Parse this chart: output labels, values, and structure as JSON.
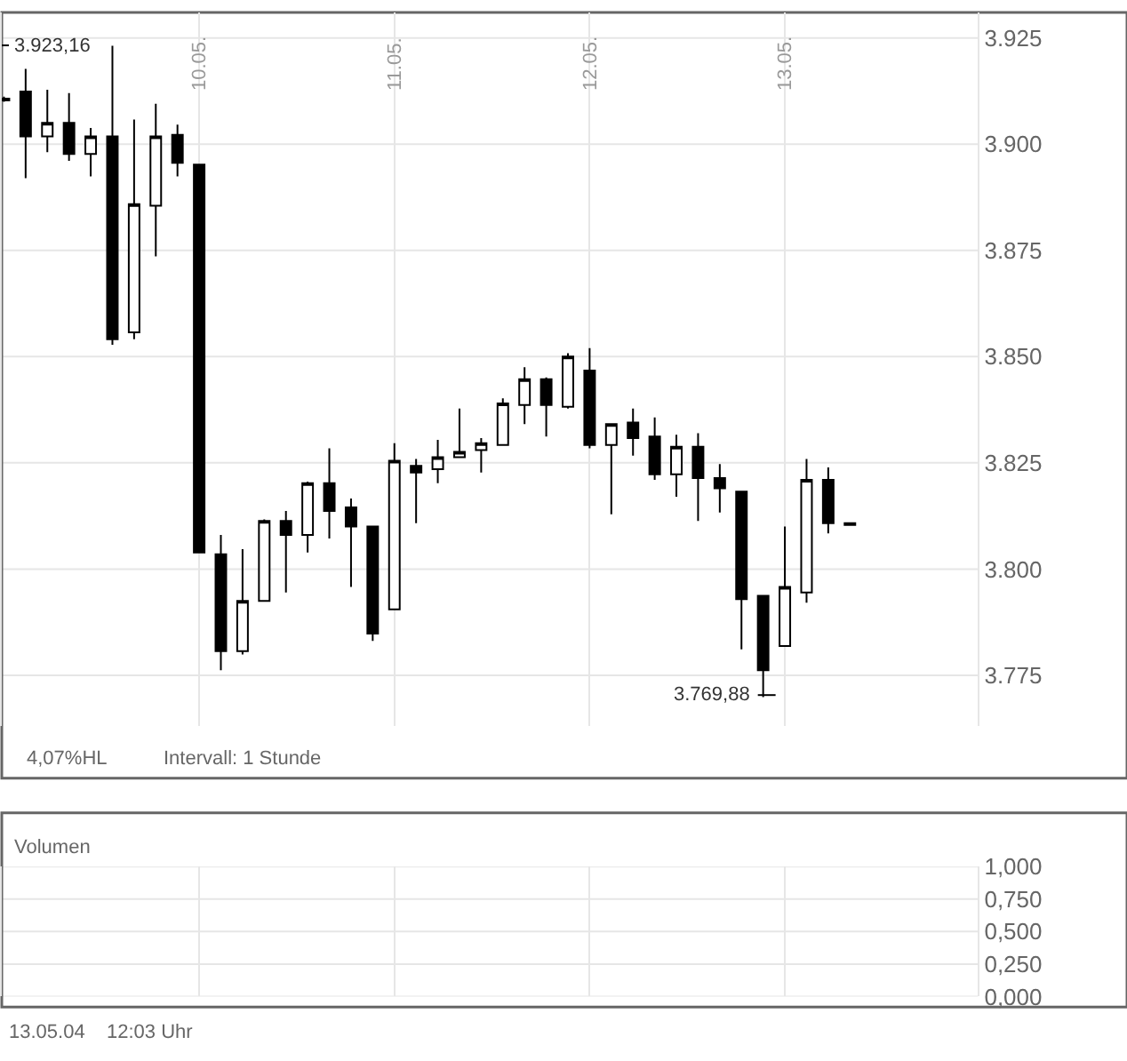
{
  "chart_data": [
    {
      "type": "candlestick",
      "categories": [
        null,
        null,
        null,
        null,
        null,
        null,
        null,
        null,
        null,
        "10.05.",
        null,
        null,
        null,
        null,
        null,
        null,
        null,
        null,
        "11.05.",
        null,
        null,
        null,
        null,
        null,
        null,
        null,
        null,
        "12.05.",
        null,
        null,
        null,
        null,
        null,
        null,
        null,
        null,
        "13.05.",
        null,
        null,
        null
      ],
      "ohlc": [
        [
          3910.3,
          3911.2,
          3910.0,
          3910.7
        ],
        [
          3912.4,
          3917.7,
          3892.0,
          3901.8
        ],
        [
          3901.8,
          3912.8,
          3898.1,
          3905.0
        ],
        [
          3905.0,
          3912.0,
          3896.1,
          3897.7
        ],
        [
          3897.7,
          3903.8,
          3892.4,
          3901.8
        ],
        [
          3901.8,
          3923.16,
          3852.8,
          3854.1
        ],
        [
          3855.7,
          3905.8,
          3854.1,
          3885.9
        ],
        [
          3885.5,
          3909.5,
          3873.6,
          3901.8
        ],
        [
          3902.2,
          3904.6,
          3892.4,
          3895.6
        ],
        [
          3895.2,
          3895.2,
          3803.9,
          3803.9
        ],
        [
          3803.5,
          3808.0,
          3776.2,
          3780.7
        ],
        [
          3780.7,
          3804.7,
          3779.9,
          3792.5
        ],
        [
          3792.5,
          3811.7,
          3792.5,
          3811.3
        ],
        [
          3811.3,
          3813.7,
          3794.5,
          3808.0
        ],
        [
          3808.0,
          3820.6,
          3803.9,
          3820.2
        ],
        [
          3820.2,
          3828.4,
          3807.2,
          3813.7
        ],
        [
          3814.5,
          3816.6,
          3795.8,
          3810.0
        ],
        [
          3810.0,
          3810.0,
          3783.1,
          3784.8
        ],
        [
          3790.5,
          3829.6,
          3790.5,
          3825.5
        ],
        [
          3824.3,
          3825.9,
          3810.8,
          3822.7
        ],
        [
          3823.5,
          3830.4,
          3820.2,
          3826.3
        ],
        [
          3826.3,
          3837.8,
          3826.3,
          3827.6
        ],
        [
          3828.0,
          3830.8,
          3822.7,
          3829.6
        ],
        [
          3829.2,
          3840.2,
          3829.2,
          3839.0
        ],
        [
          3838.6,
          3847.5,
          3834.1,
          3844.7
        ],
        [
          3844.7,
          3845.1,
          3831.2,
          3838.6
        ],
        [
          3838.2,
          3850.8,
          3837.8,
          3850.0
        ],
        [
          3846.7,
          3852.0,
          3828.4,
          3829.2
        ],
        [
          3829.2,
          3834.1,
          3812.9,
          3834.1
        ],
        [
          3834.5,
          3837.8,
          3826.7,
          3830.8
        ],
        [
          3831.2,
          3835.7,
          3821.0,
          3822.3
        ],
        [
          3822.3,
          3831.6,
          3817.0,
          3828.8
        ],
        [
          3828.8,
          3832.0,
          3811.3,
          3821.4
        ],
        [
          3821.4,
          3824.7,
          3813.3,
          3819.0
        ],
        [
          3818.2,
          3818.2,
          3781.1,
          3792.9
        ],
        [
          3793.7,
          3793.7,
          3769.88,
          3776.2
        ],
        [
          3781.9,
          3810.0,
          3781.9,
          3795.8
        ],
        [
          3794.5,
          3825.9,
          3792.1,
          3821.0
        ],
        [
          3821.0,
          3823.9,
          3808.4,
          3810.8
        ],
        [
          3810.8,
          3810.8,
          3810.4,
          3810.4
        ]
      ],
      "ylim": [
        3763,
        3931
      ],
      "yticks": [
        {
          "value": 3775,
          "label": "3.775"
        },
        {
          "value": 3800,
          "label": "3.800"
        },
        {
          "value": 3825,
          "label": "3.825"
        },
        {
          "value": 3850,
          "label": "3.850"
        },
        {
          "value": 3875,
          "label": "3.875"
        },
        {
          "value": 3900,
          "label": "3.900"
        },
        {
          "value": 3925,
          "label": "3.925"
        }
      ],
      "grid": true,
      "annotations": [
        "3.923,16",
        "3.769,88",
        "4,07%HL",
        "Intervall: 1 Stunde"
      ]
    },
    {
      "type": "bar",
      "title": "Volumen",
      "categories": [
        null,
        null,
        null,
        null,
        null,
        null,
        null,
        null,
        null,
        null,
        null,
        null,
        null,
        null,
        null,
        null,
        null,
        null,
        null,
        null,
        null,
        null,
        null,
        null,
        null,
        null,
        null,
        null,
        null,
        null,
        null,
        null,
        null,
        null,
        null,
        null,
        null,
        null,
        null,
        null
      ],
      "values": [
        null,
        null,
        null,
        null,
        null,
        null,
        null,
        null,
        null,
        null,
        null,
        null,
        null,
        null,
        null,
        null,
        null,
        null,
        null,
        null,
        null,
        null,
        null,
        null,
        null,
        null,
        null,
        null,
        null,
        null,
        null,
        null,
        null,
        null,
        null,
        null,
        null,
        null,
        null,
        null
      ],
      "tick_labels": "y",
      "ylim": [
        0,
        1
      ],
      "yticks": [
        {
          "value": 0,
          "label": "0,000"
        },
        {
          "value": 0.25,
          "label": "0,250"
        },
        {
          "value": 0.5,
          "label": "0,500"
        },
        {
          "value": 0.75,
          "label": "0,750"
        },
        {
          "value": 1,
          "label": "1,000"
        }
      ],
      "grid": true,
      "annotations": [
        "13.05.04",
        "12:03 Uhr"
      ]
    }
  ]
}
